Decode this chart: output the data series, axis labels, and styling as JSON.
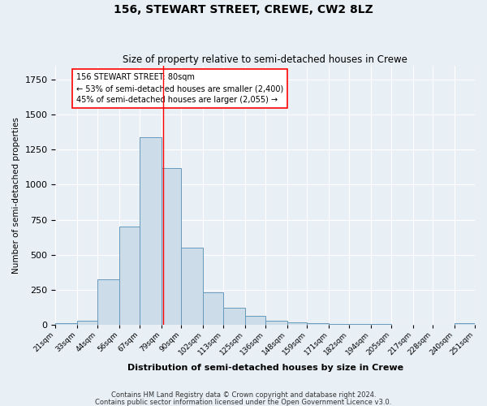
{
  "title": "156, STEWART STREET, CREWE, CW2 8LZ",
  "subtitle": "Size of property relative to semi-detached houses in Crewe",
  "xlabel": "Distribution of semi-detached houses by size in Crewe",
  "ylabel": "Number of semi-detached properties",
  "footnote1": "Contains HM Land Registry data © Crown copyright and database right 2024.",
  "footnote2": "Contains public sector information licensed under the Open Government Licence v3.0.",
  "bin_labels": [
    "21sqm",
    "33sqm",
    "44sqm",
    "56sqm",
    "67sqm",
    "79sqm",
    "90sqm",
    "102sqm",
    "113sqm",
    "125sqm",
    "136sqm",
    "148sqm",
    "159sqm",
    "171sqm",
    "182sqm",
    "194sqm",
    "205sqm",
    "217sqm",
    "228sqm",
    "240sqm",
    "251sqm"
  ],
  "bin_edges": [
    21,
    33,
    44,
    56,
    67,
    79,
    90,
    102,
    113,
    125,
    136,
    148,
    159,
    171,
    182,
    194,
    205,
    217,
    228,
    240,
    251
  ],
  "bar_heights": [
    10,
    30,
    325,
    700,
    1340,
    1120,
    550,
    235,
    120,
    65,
    30,
    20,
    15,
    5,
    5,
    5,
    0,
    0,
    0,
    15
  ],
  "bar_color": "#ccdce8",
  "bar_edge_color": "#6699bb",
  "property_line_x": 80,
  "annotation_title": "156 STEWART STREET: 80sqm",
  "annotation_line2": "← 53% of semi-detached houses are smaller (2,400)",
  "annotation_line3": "45% of semi-detached houses are larger (2,055) →",
  "ylim": [
    0,
    1850
  ],
  "background_color": "#e8eff5",
  "plot_bg_color": "#e8eff5",
  "grid_color": "white"
}
